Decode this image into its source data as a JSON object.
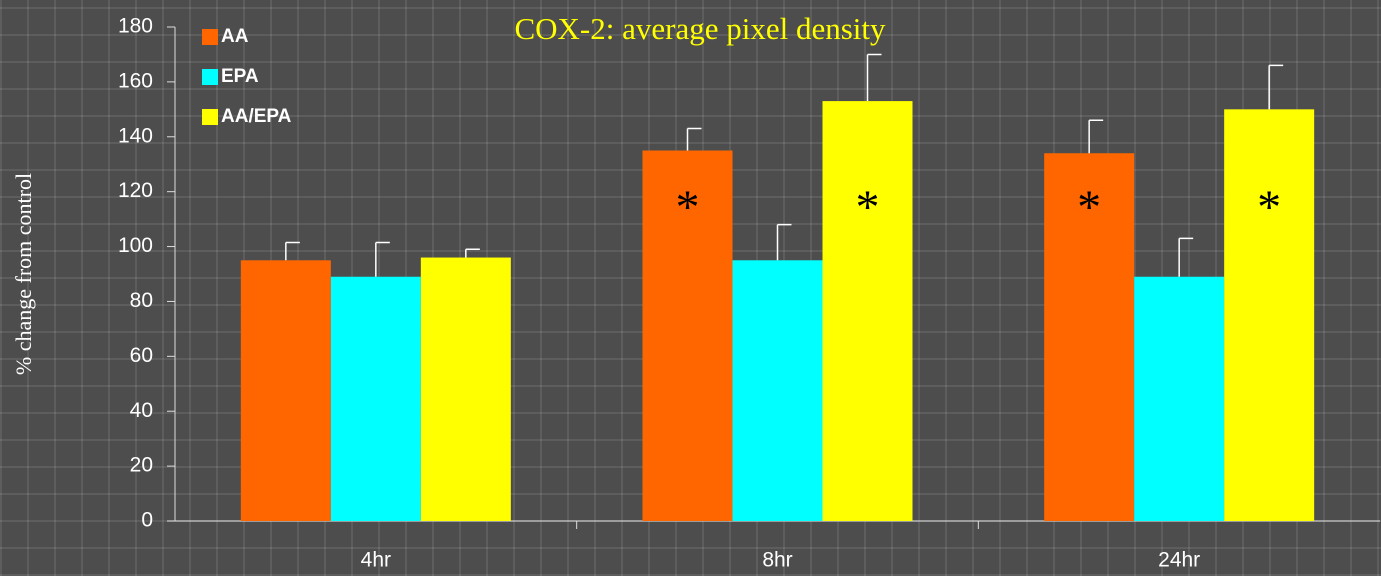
{
  "chart_data": {
    "type": "bar",
    "title": "COX-2: average pixel density",
    "y_label": "% change from control",
    "categories": [
      "4hr",
      "8hr",
      "24hr"
    ],
    "series": [
      {
        "name": "AA",
        "color": "#ff6600",
        "values": [
          95,
          135,
          134
        ],
        "errors": [
          6.5,
          8,
          12
        ]
      },
      {
        "name": "EPA",
        "color": "#00ffff",
        "values": [
          89,
          95,
          89
        ],
        "errors": [
          12.5,
          13,
          14
        ]
      },
      {
        "name": "AA/EPA",
        "color": "#ffff00",
        "values": [
          96,
          153,
          150
        ],
        "errors": [
          3,
          17,
          16
        ]
      }
    ],
    "annotations": [
      {
        "text": "*",
        "series": "AA",
        "category": "8hr"
      },
      {
        "text": "*",
        "series": "AA/EPA",
        "category": "8hr"
      },
      {
        "text": "*",
        "series": "AA",
        "category": "24hr"
      },
      {
        "text": "*",
        "series": "AA/EPA",
        "category": "24hr"
      }
    ],
    "ylim": [
      0,
      180
    ],
    "yticks": [
      0,
      20,
      40,
      60,
      80,
      100,
      120,
      140,
      160,
      180
    ],
    "grid": false,
    "legend": "top-left"
  }
}
